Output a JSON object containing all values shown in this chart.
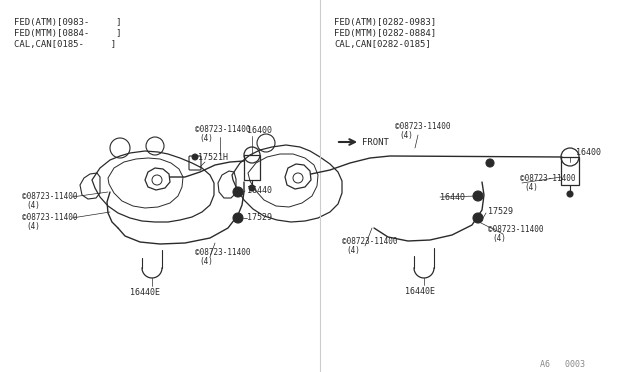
{
  "bg_color": "#ffffff",
  "line_color": "#2a2a2a",
  "text_color": "#2a2a2a",
  "divider_color": "#cccccc",
  "left_header": [
    "FED(ATM)[0983-     ]",
    "FED(MTM)[0884-     ]",
    "CAL,CAN[0185-     ]"
  ],
  "right_header": [
    "FED(ATM)[0282-0983]",
    "FED(MTM)[0282-0884]",
    "CAL,CAN[0282-0185]"
  ],
  "footer": "A6   0003"
}
